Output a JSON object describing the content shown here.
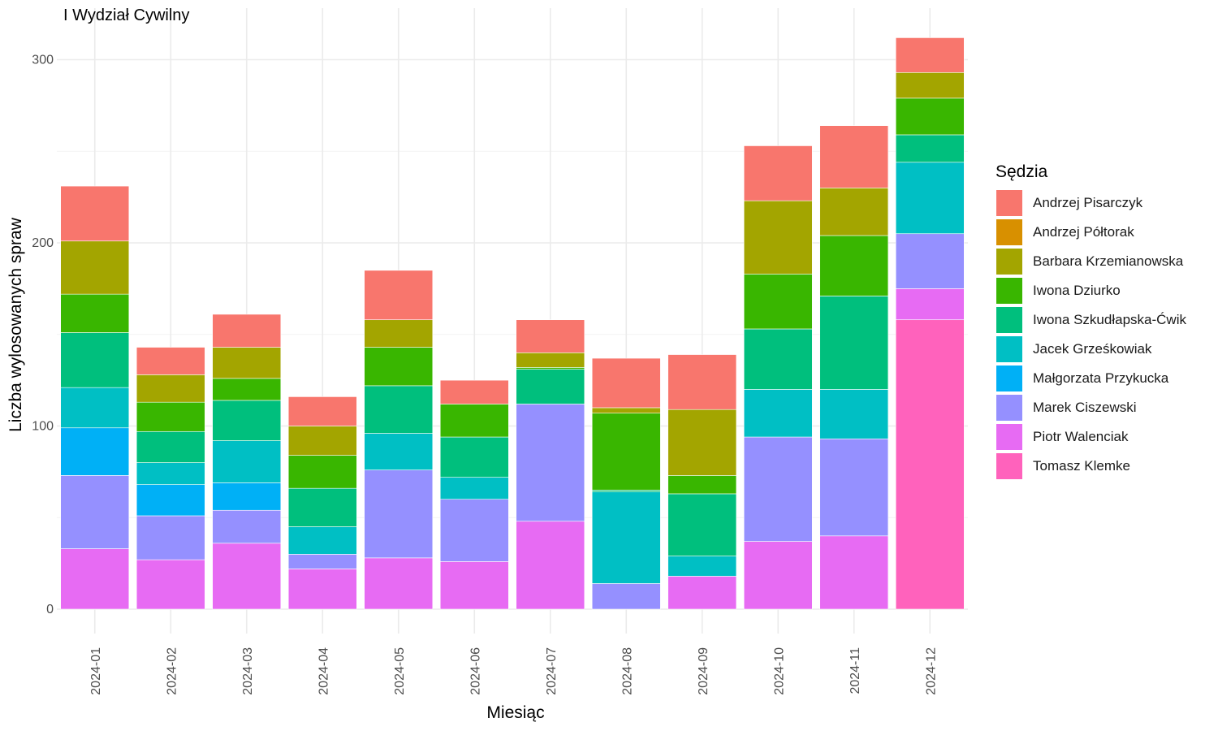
{
  "chart_data": {
    "type": "bar",
    "stacked": true,
    "title": "I Wydział Cywilny",
    "xlabel": "Miesiąc",
    "ylabel": "Liczba wylosowanych spraw",
    "ylim": [
      0,
      312
    ],
    "yticks": [
      0,
      100,
      200,
      300
    ],
    "grid": true,
    "legend_title": "Sędzia",
    "legend_position": "right",
    "categories": [
      "2024-01",
      "2024-02",
      "2024-03",
      "2024-04",
      "2024-05",
      "2024-06",
      "2024-07",
      "2024-08",
      "2024-09",
      "2024-10",
      "2024-11",
      "2024-12"
    ],
    "series": [
      {
        "name": "Andrzej Pisarczyk",
        "color": "#F8766D",
        "values": [
          30,
          15,
          18,
          16,
          27,
          13,
          18,
          27,
          30,
          30,
          34,
          19
        ]
      },
      {
        "name": "Andrzej Półtorak",
        "color": "#D89000",
        "values": [
          0,
          0,
          0,
          0,
          0,
          0,
          0,
          0,
          0,
          0,
          0,
          0
        ]
      },
      {
        "name": "Barbara Krzemianowska",
        "color": "#A3A500",
        "values": [
          29,
          15,
          17,
          16,
          15,
          0,
          8,
          3,
          36,
          40,
          26,
          14
        ]
      },
      {
        "name": "Iwona Dziurko",
        "color": "#39B600",
        "values": [
          21,
          16,
          12,
          18,
          21,
          18,
          1,
          42,
          10,
          30,
          33,
          20
        ]
      },
      {
        "name": "Iwona Szkudłapska-Ćwik",
        "color": "#00BF7D",
        "values": [
          30,
          17,
          22,
          21,
          26,
          22,
          19,
          1,
          34,
          33,
          51,
          15
        ]
      },
      {
        "name": "Jacek Grześkowiak",
        "color": "#00BFC4",
        "values": [
          22,
          12,
          23,
          15,
          20,
          12,
          0,
          50,
          11,
          26,
          27,
          39
        ]
      },
      {
        "name": "Małgorzata Przykucka",
        "color": "#00B0F6",
        "values": [
          26,
          17,
          15,
          0,
          0,
          0,
          0,
          0,
          0,
          0,
          0,
          0
        ]
      },
      {
        "name": "Marek Ciszewski",
        "color": "#9590FF",
        "values": [
          40,
          24,
          18,
          8,
          48,
          34,
          64,
          14,
          0,
          57,
          53,
          30
        ]
      },
      {
        "name": "Piotr Walenciak",
        "color": "#E76BF3",
        "values": [
          33,
          27,
          36,
          22,
          28,
          26,
          48,
          0,
          18,
          37,
          40,
          17
        ]
      },
      {
        "name": "Tomasz Klemke",
        "color": "#FF62BC",
        "values": [
          0,
          0,
          0,
          0,
          0,
          0,
          0,
          0,
          0,
          0,
          0,
          158
        ]
      }
    ]
  }
}
